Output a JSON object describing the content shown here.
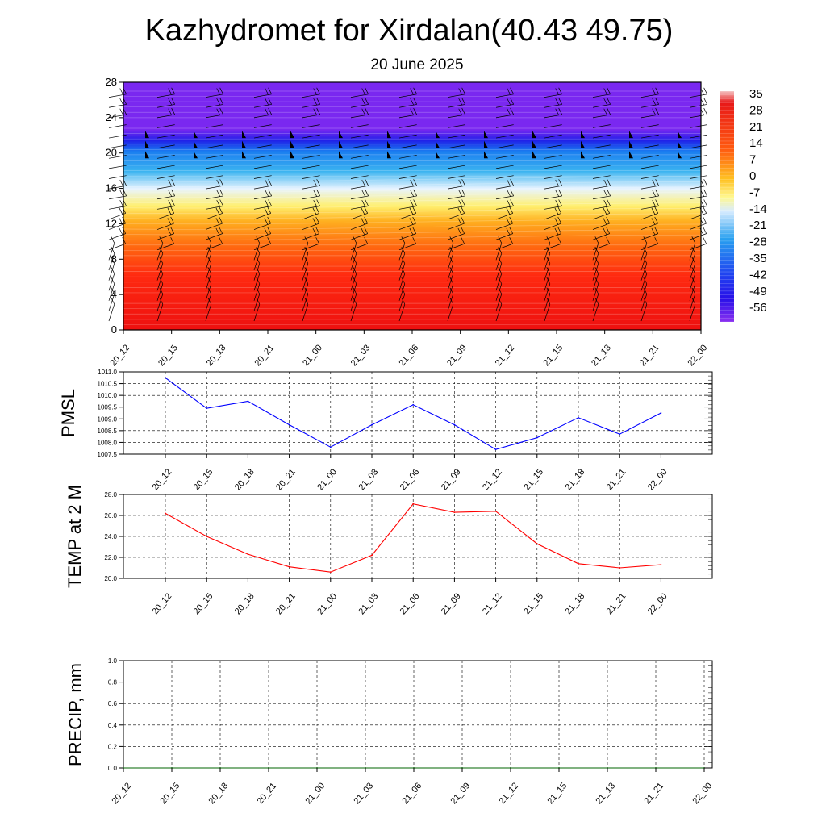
{
  "header": {
    "title": "Kazhydromet for Xirdalan(40.43 49.75)",
    "subtitle": "20 June 2025"
  },
  "x_labels": [
    "20_12",
    "20_15",
    "20_18",
    "20_21",
    "21_00",
    "21_03",
    "21_06",
    "21_09",
    "21_12",
    "21_15",
    "21_18",
    "21_21",
    "22_00"
  ],
  "chart_data": [
    {
      "id": "cross_section",
      "type": "heatmap",
      "title": "",
      "x": [
        "20_12",
        "20_15",
        "20_18",
        "20_21",
        "21_00",
        "21_03",
        "21_06",
        "21_09",
        "21_12",
        "21_15",
        "21_18",
        "21_21",
        "22_00"
      ],
      "y_ticks": [
        0,
        4,
        8,
        12,
        16,
        20,
        24,
        28
      ],
      "ylim": [
        0,
        28
      ],
      "colorbar_labels": [
        "35",
        "28",
        "21",
        "14",
        "7",
        "0",
        "-7",
        "-14",
        "-21",
        "-28",
        "-35",
        "-42",
        "-49",
        "-56"
      ],
      "colorbar_range": [
        -60,
        38
      ],
      "temperature_profile": [
        {
          "level": 0,
          "value": 30
        },
        {
          "level": 4,
          "value": 28
        },
        {
          "level": 7,
          "value": 22
        },
        {
          "level": 10,
          "value": 14
        },
        {
          "level": 12,
          "value": 8
        },
        {
          "level": 13.5,
          "value": -14
        },
        {
          "level": 16,
          "value": -28
        },
        {
          "level": 18,
          "value": -42
        },
        {
          "level": 20,
          "value": -52
        },
        {
          "level": 21,
          "value": -58
        },
        {
          "level": 22.5,
          "value": -56
        },
        {
          "level": 28,
          "value": -56
        }
      ],
      "wind_barbs": "present",
      "grid": false,
      "colors": {
        "low": "#7a28f0",
        "mid": "#ffffe0",
        "high": "#e31a1c"
      }
    },
    {
      "id": "pmsl",
      "type": "line",
      "ylabel": "PMSL",
      "x": [
        "20_12",
        "20_15",
        "20_18",
        "20_21",
        "21_00",
        "21_03",
        "21_06",
        "21_09",
        "21_12",
        "21_15",
        "21_18",
        "21_21",
        "22_00"
      ],
      "y_ticks": [
        "1007.5",
        "1008.0",
        "1008.5",
        "1009.0",
        "1009.5",
        "1010.0",
        "1010.5",
        "1011.0"
      ],
      "ylim": [
        1007.5,
        1011.0
      ],
      "series": [
        {
          "values": [
            1010.75,
            1009.45,
            1009.75,
            1008.75,
            1007.8,
            1008.75,
            1009.6,
            1008.75,
            1007.7,
            1008.2,
            1009.05,
            1008.35,
            1009.25
          ],
          "color": "#0000ff"
        }
      ],
      "grid": true
    },
    {
      "id": "temp2m",
      "type": "line",
      "ylabel": "TEMP at 2 M",
      "x": [
        "20_12",
        "20_15",
        "20_18",
        "20_21",
        "21_00",
        "21_03",
        "21_06",
        "21_09",
        "21_12",
        "21_15",
        "21_18",
        "21_21",
        "22_00"
      ],
      "y_ticks": [
        "20.0",
        "22.0",
        "24.0",
        "26.0",
        "28.0"
      ],
      "ylim": [
        20.0,
        28.0
      ],
      "series": [
        {
          "values": [
            26.2,
            24.0,
            22.3,
            21.1,
            20.6,
            22.2,
            27.1,
            26.3,
            26.4,
            23.3,
            21.4,
            21.0,
            21.3
          ],
          "color": "#ff0000"
        }
      ],
      "grid": true
    },
    {
      "id": "precip",
      "type": "line",
      "ylabel": "PRECIP, mm",
      "x": [
        "20_12",
        "20_15",
        "20_18",
        "20_21",
        "21_00",
        "21_03",
        "21_06",
        "21_09",
        "21_12",
        "21_15",
        "21_18",
        "21_21",
        "22_00"
      ],
      "y_ticks": [
        "0.0",
        "0.2",
        "0.4",
        "0.6",
        "0.8",
        "1.0"
      ],
      "ylim": [
        0.0,
        1.0
      ],
      "series": [
        {
          "values": [
            0,
            0,
            0,
            0,
            0,
            0,
            0,
            0,
            0,
            0,
            0,
            0,
            0
          ],
          "color": "#006400"
        }
      ],
      "grid": true
    }
  ]
}
